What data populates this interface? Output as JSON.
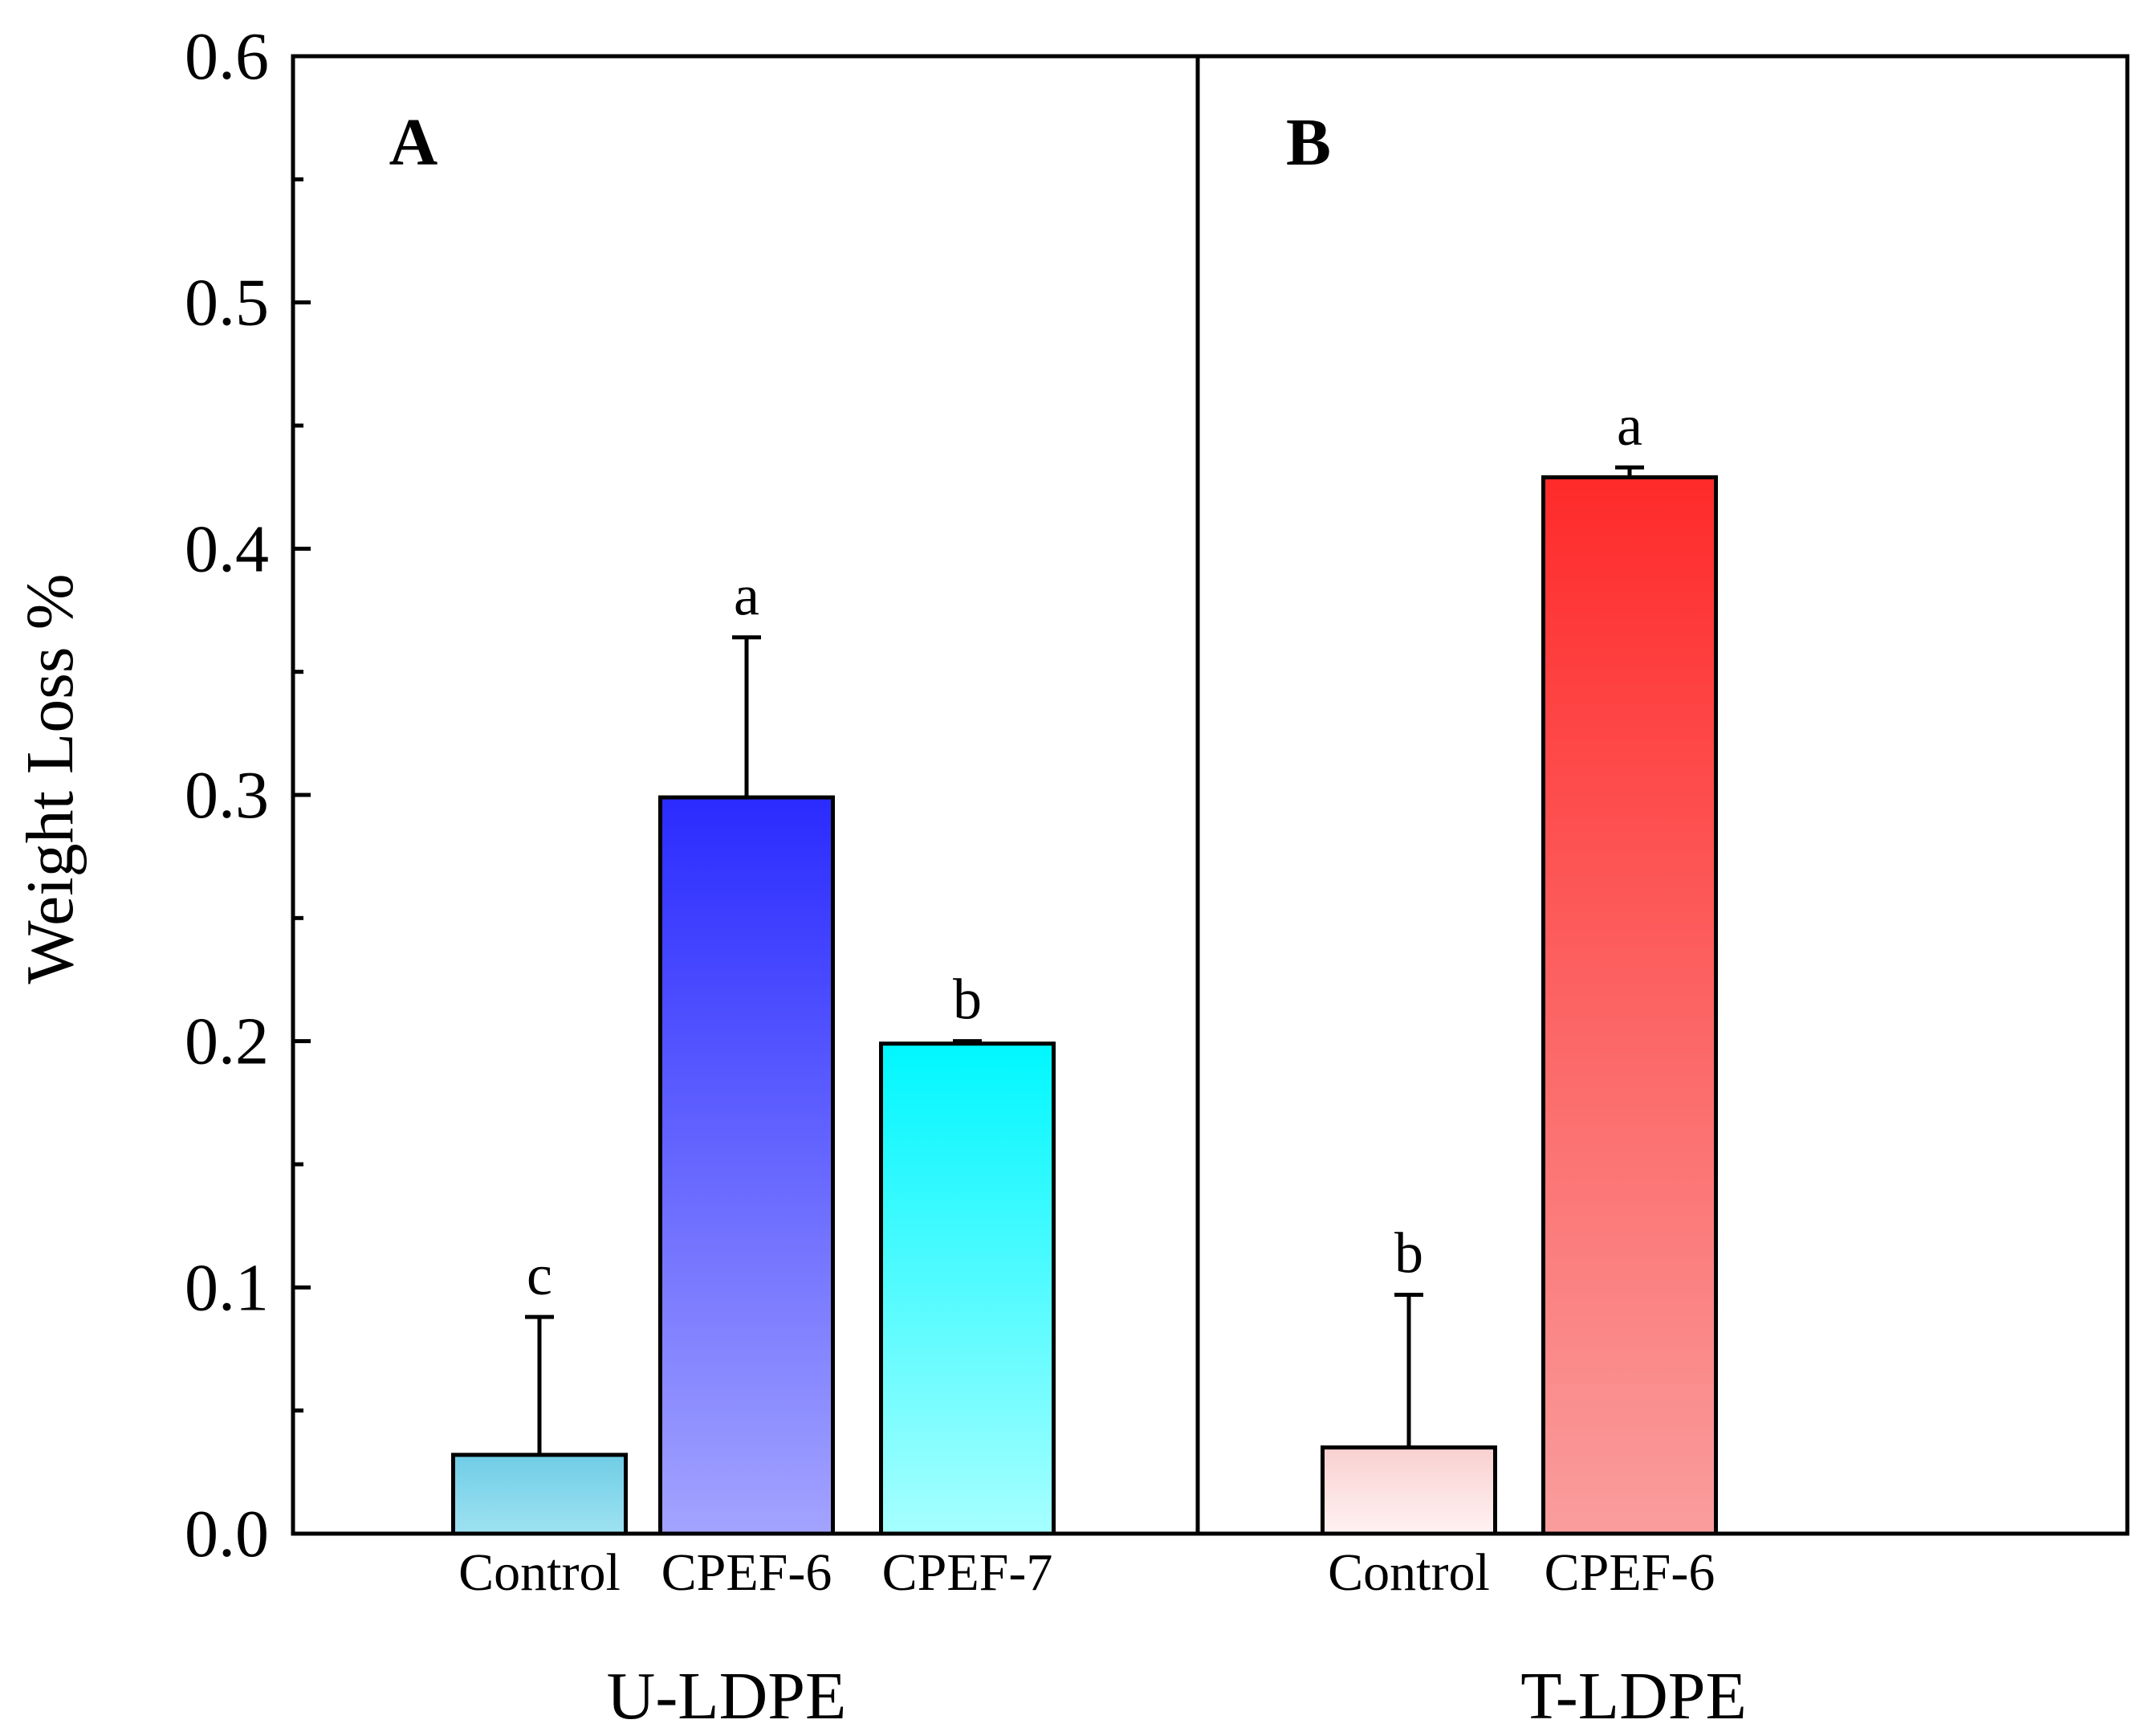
{
  "chart_data": {
    "type": "bar",
    "ylabel": "Weight Loss %",
    "ylim": [
      0,
      0.6
    ],
    "yticks": [
      "0.0",
      "0.1",
      "0.2",
      "0.3",
      "0.4",
      "0.5",
      "0.6"
    ],
    "grid": false,
    "legend": "none",
    "panels": [
      {
        "label": "A",
        "group": "U-LDPE",
        "bars": [
          {
            "category": "Control",
            "value": 0.032,
            "error": 0.056,
            "sig": "c",
            "color_top": "#6fcde6",
            "color_bottom": "#9ee2f2"
          },
          {
            "category": "CPEF-6",
            "value": 0.299,
            "error": 0.065,
            "sig": "a",
            "color_top": "#2a2bff",
            "color_bottom": "#a3a3ff"
          },
          {
            "category": "CPEF-7",
            "value": 0.199,
            "error": 0.001,
            "sig": "b",
            "color_top": "#00f7ff",
            "color_bottom": "#a6ffff"
          }
        ]
      },
      {
        "label": "B",
        "group": "T-LDPE",
        "bars": [
          {
            "category": "Control",
            "value": 0.035,
            "error": 0.062,
            "sig": "b",
            "color_top": "#f9d0d0",
            "color_bottom": "#fff2f2"
          },
          {
            "category": "CPEF-6",
            "value": 0.429,
            "error": 0.004,
            "sig": "a",
            "color_top": "#ff2a2a",
            "color_bottom": "#fa9d9d"
          }
        ]
      }
    ]
  }
}
